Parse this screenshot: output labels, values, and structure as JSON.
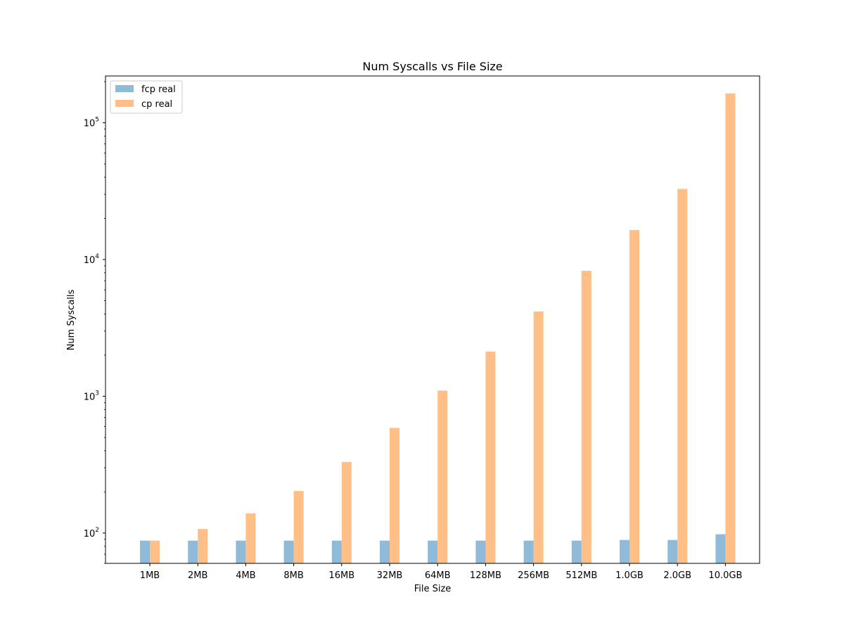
{
  "chart_data": {
    "type": "bar",
    "title": "Num Syscalls vs File Size",
    "xlabel": "File Size",
    "ylabel": "Num Syscalls",
    "yscale": "log",
    "ylim": [
      60,
      220000
    ],
    "grid": false,
    "legend_position": "top-left",
    "categories": [
      "1MB",
      "2MB",
      "4MB",
      "8MB",
      "16MB",
      "32MB",
      "64MB",
      "128MB",
      "256MB",
      "512MB",
      "1.0GB",
      "2.0GB",
      "10.0GB"
    ],
    "y_ticks": [
      {
        "value": 100,
        "label": "10^2",
        "base": "10",
        "exp": "2"
      },
      {
        "value": 1000,
        "label": "10^3",
        "base": "10",
        "exp": "3"
      },
      {
        "value": 10000,
        "label": "10^4",
        "base": "10",
        "exp": "4"
      },
      {
        "value": 100000,
        "label": "10^5",
        "base": "10",
        "exp": "5"
      }
    ],
    "series": [
      {
        "name": "fcp real",
        "color": "#8fbbd9",
        "values": [
          88,
          88,
          88,
          88,
          88,
          88,
          88,
          88,
          88,
          88,
          89,
          89,
          98
        ]
      },
      {
        "name": "cp real",
        "color": "#ffbf86",
        "values": [
          88,
          107,
          139,
          203,
          331,
          587,
          1100,
          2124,
          4172,
          8268,
          16460,
          32844,
          164000
        ]
      }
    ]
  }
}
